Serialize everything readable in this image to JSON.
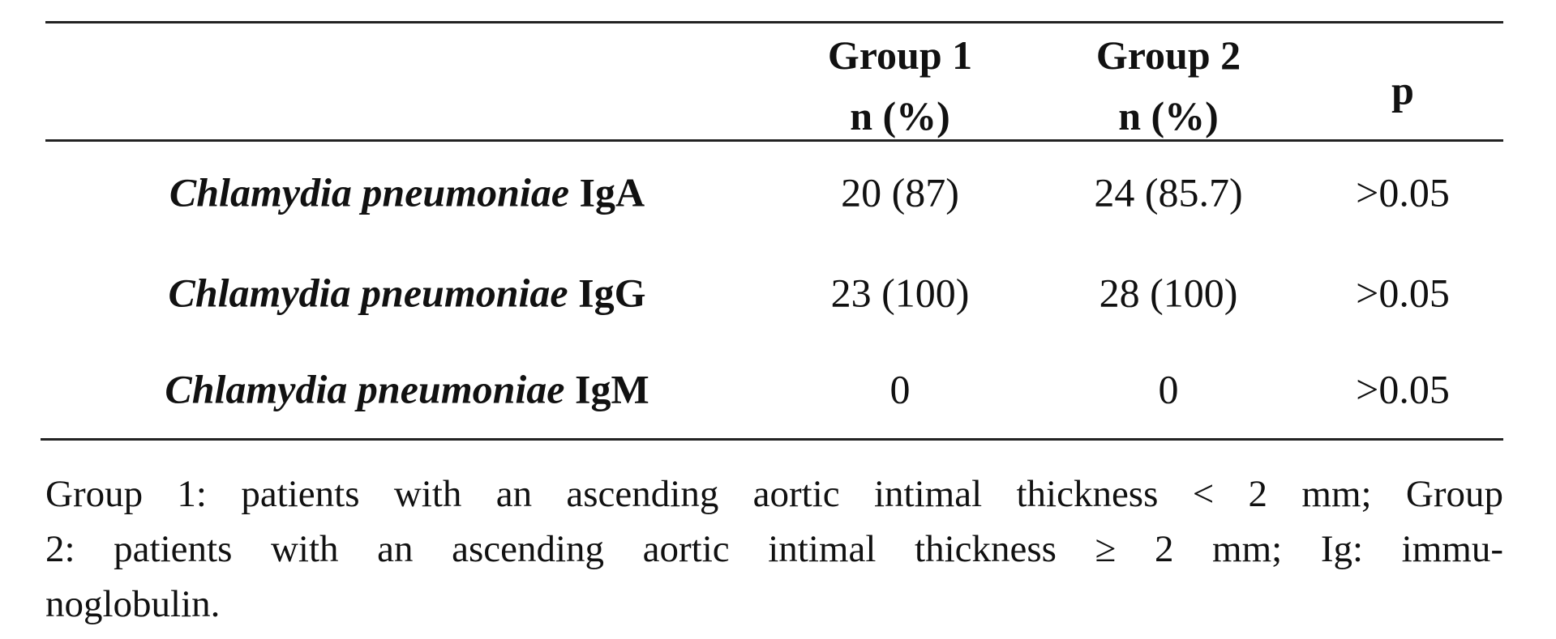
{
  "table": {
    "header": [
      "",
      [
        "Group 1",
        "n (%)"
      ],
      [
        "Group 2",
        "n (%)"
      ],
      "p"
    ],
    "rows": [
      [
        {
          "organism": "Chlamydia pneumoniae",
          "antibody": "IgA"
        },
        "20 (87)",
        "24 (85.7)",
        ">0.05"
      ],
      [
        {
          "organism": "Chlamydia pneumoniae",
          "antibody": "IgG"
        },
        "23 (100)",
        "28 (100)",
        ">0.05"
      ],
      [
        {
          "organism": "Chlamydia pneumoniae",
          "antibody": "IgM"
        },
        "0",
        "0",
        ">0.05"
      ]
    ]
  },
  "caption": [
    "Group 1: patients with an ascending aortic intimal thickness < 2 mm; Group",
    "2: patients with an ascending aortic intimal thickness ≥ 2 mm; Ig: immu-",
    "noglobulin."
  ]
}
